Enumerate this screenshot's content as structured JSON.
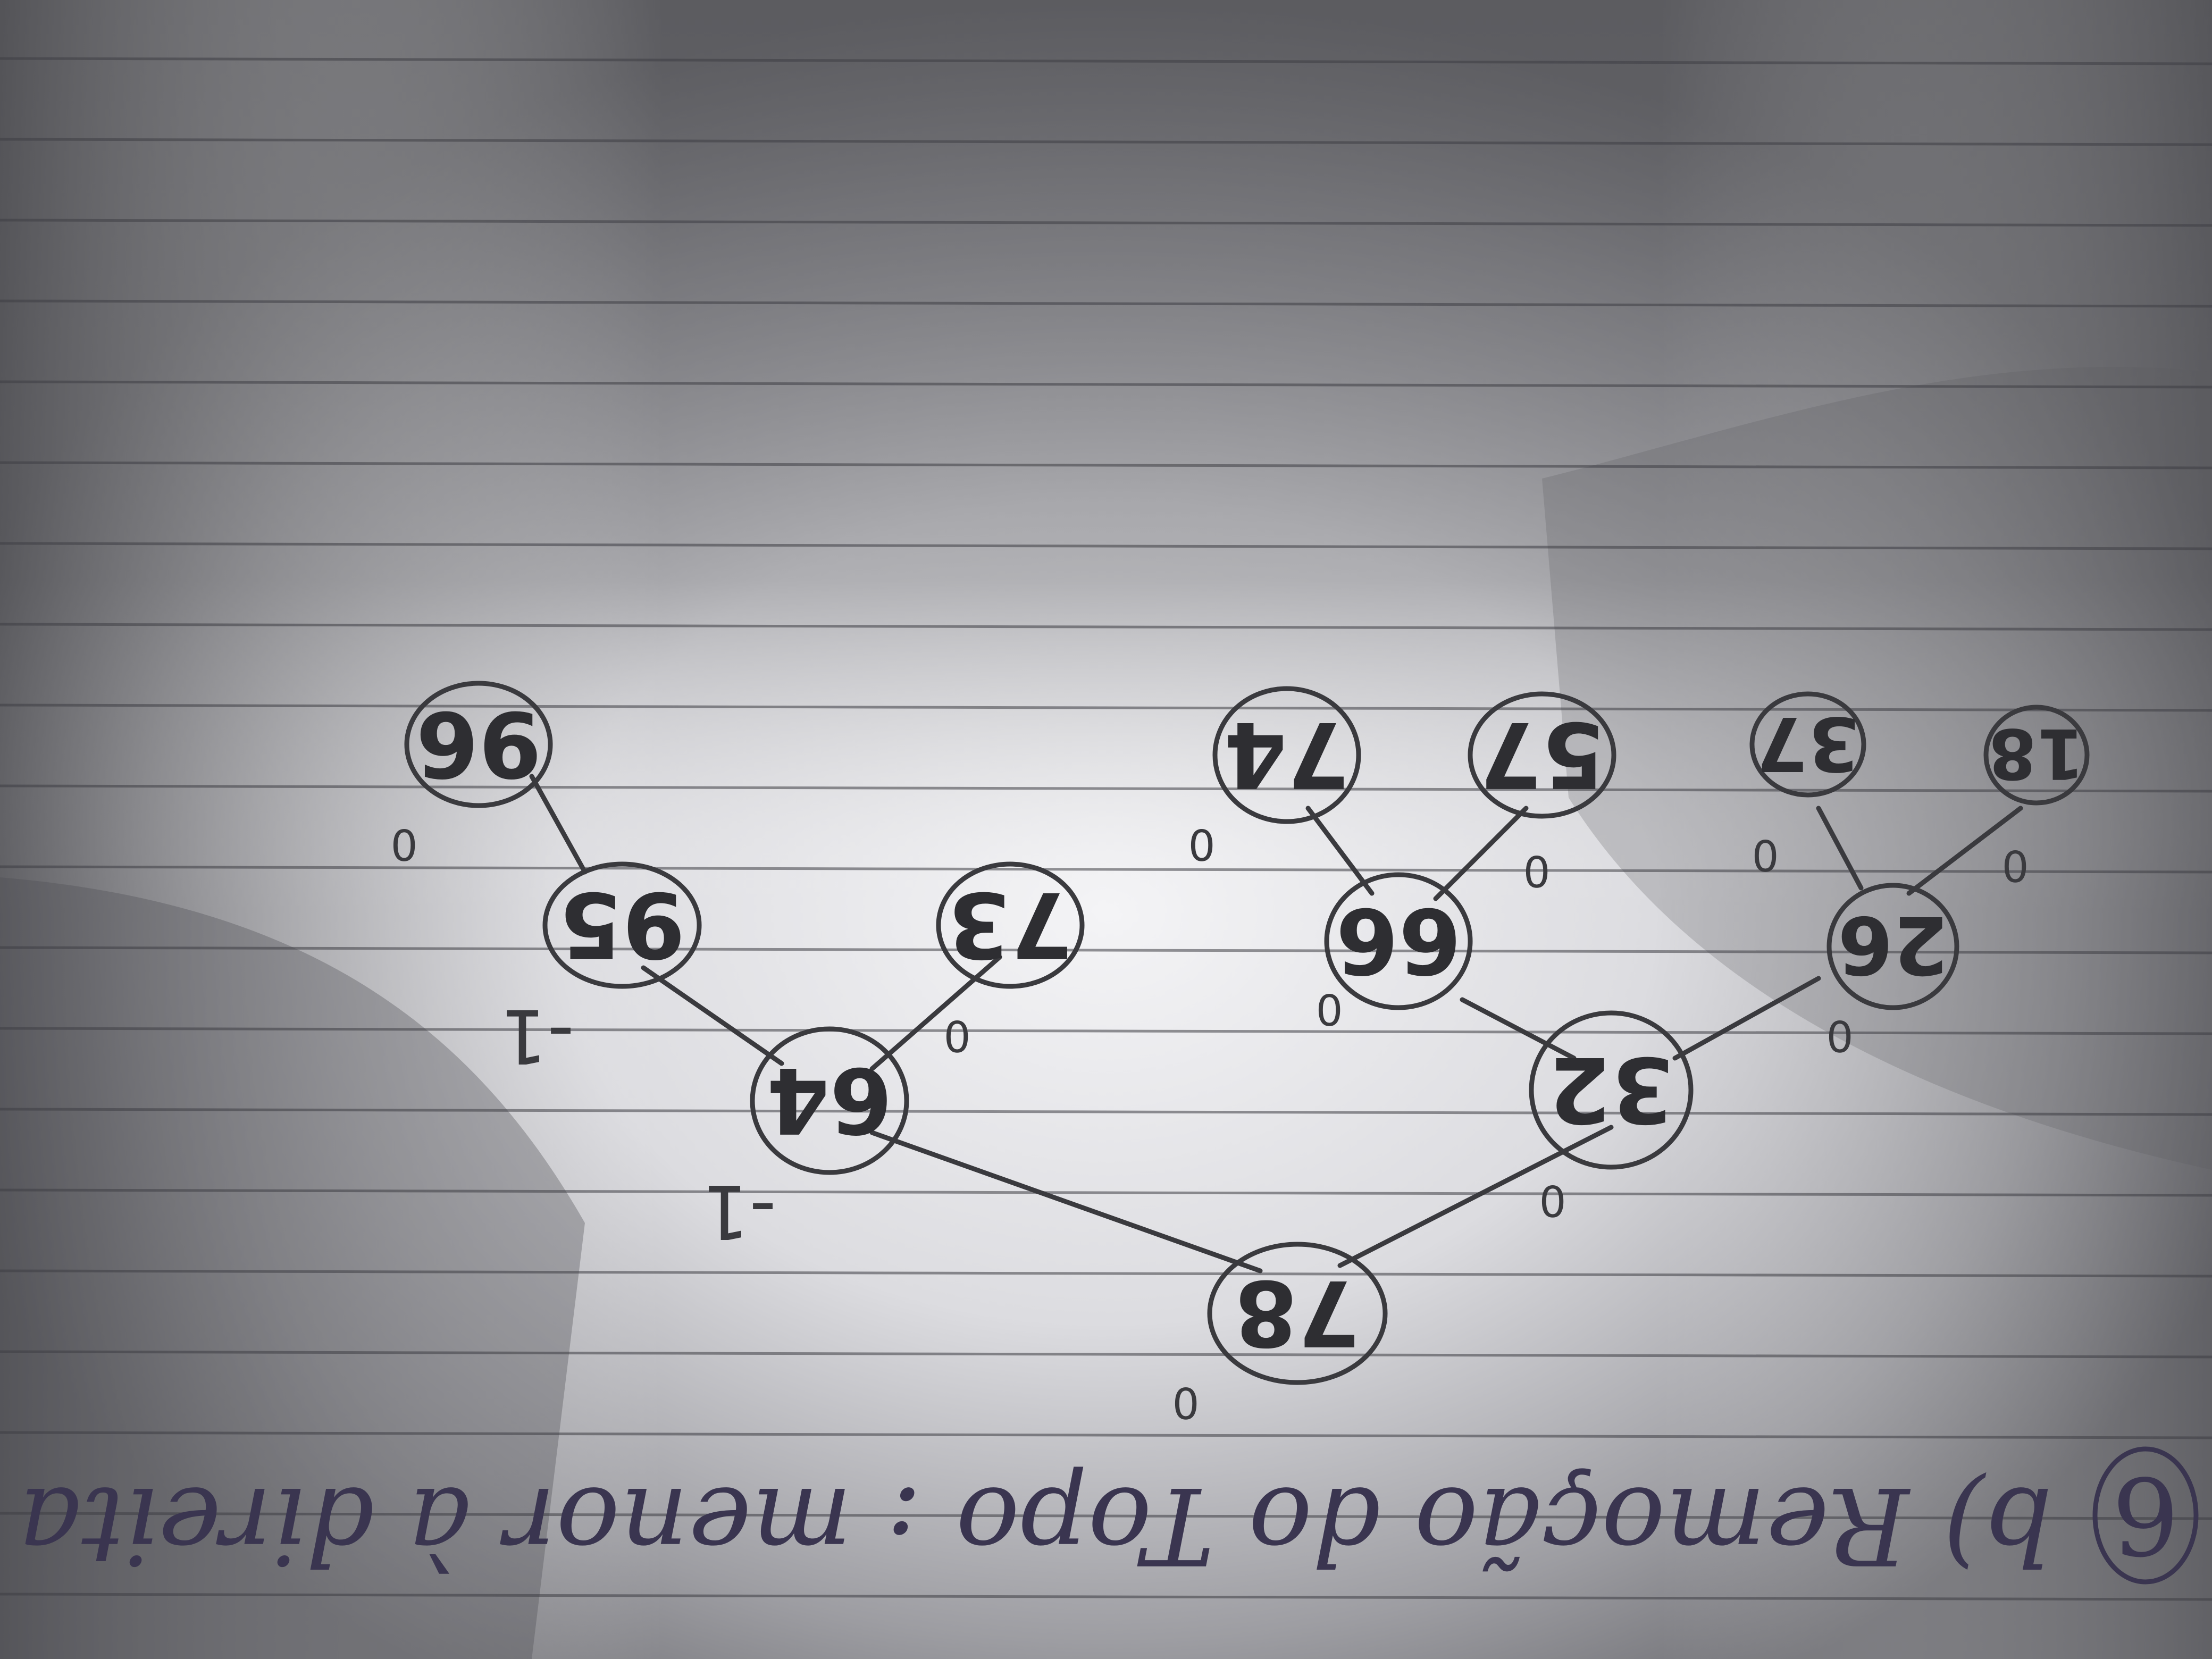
{
  "caption": {
    "exercise_number": "6",
    "text": "b) Remoção do Topo : menor à direita"
  },
  "tree": {
    "nodes": [
      {
        "key": "78",
        "balance": "0"
      },
      {
        "key": "64",
        "balance": "-1"
      },
      {
        "key": "95",
        "balance": "-1"
      },
      {
        "key": "96",
        "balance": "0"
      },
      {
        "key": "73",
        "balance": "0"
      },
      {
        "key": "32",
        "balance": "0"
      },
      {
        "key": "66",
        "balance": "0"
      },
      {
        "key": "74",
        "balance": "0"
      },
      {
        "key": "57",
        "balance": "0"
      },
      {
        "key": "26",
        "balance": "0"
      },
      {
        "key": "37",
        "balance": "0"
      },
      {
        "key": "18",
        "balance": "0"
      }
    ]
  },
  "colors": {
    "ink": "#2e2e32",
    "blue_ink": "#3a3550",
    "paper_light": "#f2f2f4",
    "paper_shadow": "#6f6f73"
  }
}
